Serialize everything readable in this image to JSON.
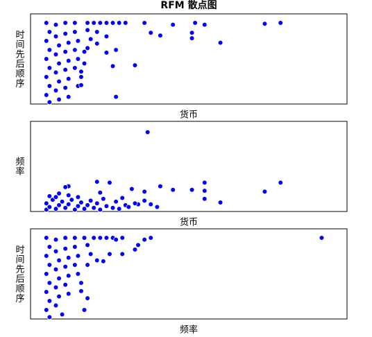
{
  "title": "RFM 散点图",
  "chart_data": [
    {
      "type": "scatter",
      "xlabel": "货币",
      "ylabel": "时间先后顺序",
      "color": "#0000ff",
      "xlim": [
        0,
        100
      ],
      "ylim": [
        0,
        100
      ],
      "x": [
        5,
        6,
        5,
        6,
        5,
        6,
        5,
        6,
        5,
        6,
        8,
        8,
        9,
        8,
        9,
        8,
        9,
        8,
        9,
        11,
        11,
        12,
        11,
        12,
        11,
        12,
        11,
        12,
        14,
        14,
        15,
        14,
        15,
        14,
        16,
        15,
        18,
        18,
        19,
        18,
        20,
        22,
        24,
        26,
        28,
        30,
        21,
        24,
        17,
        79,
        74,
        52,
        55,
        45,
        51,
        51,
        60,
        36,
        38,
        41,
        33,
        26,
        27,
        27,
        24,
        21,
        17,
        16,
        16
      ],
      "y": [
        90,
        80,
        70,
        60,
        50,
        40,
        30,
        20,
        10,
        2,
        88,
        75,
        65,
        55,
        45,
        35,
        25,
        15,
        5,
        90,
        78,
        68,
        58,
        48,
        38,
        28,
        18,
        8,
        90,
        80,
        70,
        60,
        50,
        40,
        30,
        20,
        90,
        82,
        72,
        62,
        90,
        90,
        90,
        90,
        90,
        90,
        80,
        75,
        45,
        90,
        89,
        90,
        88,
        88,
        79,
        73,
        68,
        90,
        79,
        76,
        43,
        42,
        8,
        60,
        57,
        67,
        58,
        36,
        21
      ]
    },
    {
      "type": "scatter",
      "xlabel": "货币",
      "ylabel": "频率",
      "color": "#0000ff",
      "xlim": [
        0,
        100
      ],
      "ylim": [
        0,
        100
      ],
      "x": [
        5,
        6,
        5,
        7,
        6,
        8,
        9,
        10,
        8,
        11,
        12,
        13,
        14,
        15,
        16,
        17,
        18,
        19,
        20,
        21,
        22,
        24,
        26,
        27,
        28,
        30,
        29,
        31,
        34,
        36,
        40,
        12,
        9,
        15,
        23,
        37,
        79,
        74,
        55,
        55,
        60,
        51,
        55,
        45,
        41,
        36,
        38,
        33,
        32,
        25,
        21,
        22,
        12,
        11
      ],
      "y": [
        2,
        5,
        9,
        13,
        17,
        3,
        7,
        11,
        16,
        4,
        8,
        13,
        2,
        6,
        10,
        3,
        7,
        12,
        4,
        9,
        2,
        6,
        4,
        11,
        3,
        7,
        15,
        5,
        8,
        12,
        5,
        18,
        20,
        16,
        14,
        88,
        32,
        22,
        32,
        23,
        10,
        24,
        14,
        24,
        28,
        22,
        8,
        9,
        25,
        32,
        33,
        21,
        28,
        27
      ]
    },
    {
      "type": "scatter",
      "xlabel": "频率",
      "ylabel": "时间先后顺序",
      "color": "#0000ff",
      "xlim": [
        0,
        100
      ],
      "ylim": [
        0,
        100
      ],
      "x": [
        5,
        6,
        5,
        6,
        5,
        6,
        5,
        6,
        5,
        6,
        8,
        8,
        9,
        8,
        9,
        8,
        9,
        8,
        10,
        11,
        11,
        12,
        11,
        12,
        11,
        12,
        14,
        14,
        15,
        14,
        15,
        16,
        17,
        18,
        19,
        20,
        22,
        24,
        26,
        18,
        21,
        92,
        38,
        36,
        34,
        33,
        29,
        29,
        27,
        25,
        23,
        17,
        18,
        16
      ],
      "y": [
        90,
        80,
        70,
        60,
        50,
        40,
        30,
        20,
        10,
        2,
        88,
        75,
        65,
        55,
        45,
        35,
        25,
        15,
        5,
        90,
        78,
        68,
        58,
        48,
        38,
        28,
        90,
        80,
        70,
        60,
        50,
        40,
        90,
        82,
        72,
        90,
        90,
        90,
        90,
        60,
        65,
        90,
        90,
        88,
        82,
        77,
        90,
        72,
        88,
        72,
        64,
        10,
        23,
        31
      ]
    }
  ]
}
